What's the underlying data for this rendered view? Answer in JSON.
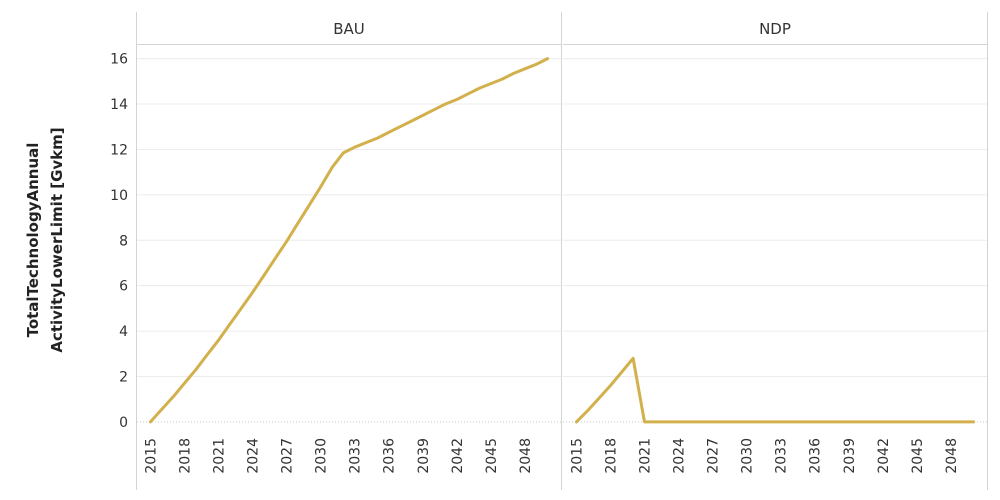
{
  "chart_data": {
    "type": "line",
    "ylabel_lines": [
      "TotalTechnologyAnnual",
      "ActivityLowerLimit [Gvkm]"
    ],
    "ylim": [
      -0.4,
      16.6
    ],
    "yticks": [
      0,
      2,
      4,
      6,
      8,
      10,
      12,
      14,
      16
    ],
    "xlim": [
      2014,
      2051
    ],
    "xticks": [
      2015,
      2018,
      2021,
      2024,
      2027,
      2030,
      2033,
      2036,
      2039,
      2042,
      2045,
      2048
    ],
    "grid": true,
    "line_color": "#d2b04c",
    "panels": [
      {
        "title": "BAU",
        "x": [
          2015,
          2016,
          2017,
          2018,
          2019,
          2020,
          2021,
          2022,
          2023,
          2024,
          2025,
          2026,
          2027,
          2028,
          2029,
          2030,
          2031,
          2032,
          2033,
          2034,
          2035,
          2036,
          2037,
          2038,
          2039,
          2040,
          2041,
          2042,
          2043,
          2044,
          2045,
          2046,
          2047,
          2048,
          2049,
          2050
        ],
        "y": [
          0,
          0.55,
          1.1,
          1.7,
          2.3,
          2.95,
          3.6,
          4.3,
          5.0,
          5.7,
          6.45,
          7.2,
          7.95,
          8.75,
          9.55,
          10.35,
          11.2,
          11.85,
          12.1,
          12.3,
          12.5,
          12.75,
          13.0,
          13.25,
          13.5,
          13.75,
          14.0,
          14.2,
          14.45,
          14.7,
          14.9,
          15.1,
          15.35,
          15.55,
          15.75,
          16.0
        ]
      },
      {
        "title": "NDP",
        "x": [
          2015,
          2016,
          2017,
          2018,
          2019,
          2020,
          2021,
          2022,
          2025,
          2030,
          2035,
          2040,
          2045,
          2050
        ],
        "y": [
          0,
          0.5,
          1.05,
          1.6,
          2.2,
          2.8,
          0,
          0,
          0,
          0,
          0,
          0,
          0,
          0
        ]
      }
    ]
  }
}
